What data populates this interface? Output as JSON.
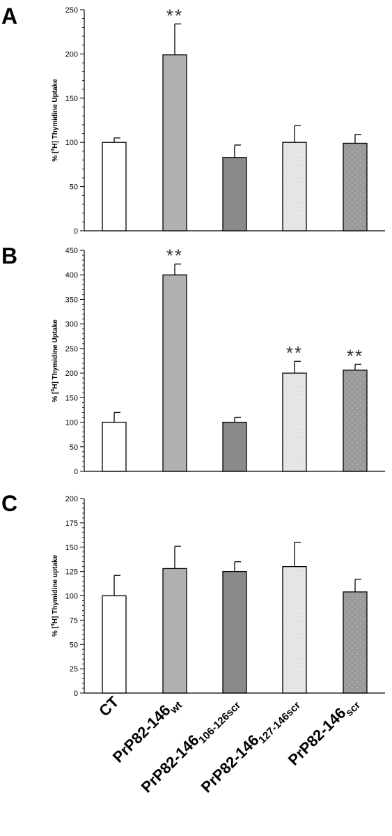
{
  "patterns": {
    "CT": {
      "fill": "#ffffff",
      "dots": null
    },
    "wt": {
      "fill": "#b0b0b0",
      "dots": null
    },
    "s106": {
      "fill": "#8a8a8a",
      "dots": null
    },
    "s127": {
      "fill": "#e6e6e6",
      "dots": "#d2d2d2"
    },
    "scr": {
      "fill": "#9a9a9a",
      "dots": "#b8b8b8"
    }
  },
  "x_labels": [
    {
      "main": "CT",
      "sub": ""
    },
    {
      "main": "PrP82-146",
      "sub": "wt"
    },
    {
      "main": "PrP82-146",
      "sub": "106-126scr"
    },
    {
      "main": "PrP82-146",
      "sub": "127-146scr"
    },
    {
      "main": "PrP82-146",
      "sub": "scr"
    }
  ],
  "significance_mark": "**",
  "chart_data": [
    {
      "type": "bar",
      "panel_letter": "A",
      "ylabel": {
        "prefix": "% [",
        "sup": "3",
        "suffix": "H] Thymidine Uptake"
      },
      "ylim": [
        0,
        250
      ],
      "yticks": [
        0,
        50,
        100,
        150,
        200,
        250
      ],
      "minor_step": 10,
      "categories": [
        "CT",
        "PrP82-146wt",
        "PrP82-146106-126scr",
        "PrP82-146127-146scr",
        "PrP82-146scr"
      ],
      "values": [
        100,
        199,
        83,
        100,
        99
      ],
      "errors": [
        5,
        35,
        14,
        19,
        10
      ],
      "significant": [
        false,
        true,
        false,
        false,
        false
      ]
    },
    {
      "type": "bar",
      "panel_letter": "B",
      "ylabel": {
        "prefix": "% [",
        "sup": "3",
        "suffix": "H] Thymidine Uptake"
      },
      "ylim": [
        0,
        450
      ],
      "yticks": [
        0,
        50,
        100,
        150,
        200,
        250,
        300,
        350,
        400,
        450
      ],
      "minor_step": 10,
      "categories": [
        "CT",
        "PrP82-146wt",
        "PrP82-146106-126scr",
        "PrP82-146127-146scr",
        "PrP82-146scr"
      ],
      "values": [
        100,
        400,
        100,
        200,
        206
      ],
      "errors": [
        20,
        22,
        10,
        24,
        12
      ],
      "significant": [
        false,
        true,
        false,
        true,
        true
      ]
    },
    {
      "type": "bar",
      "panel_letter": "C",
      "ylabel": {
        "prefix": "% [",
        "sup": "3",
        "suffix": "H] Thymidine uptake"
      },
      "ylim": [
        0,
        200
      ],
      "yticks": [
        0,
        25,
        50,
        75,
        100,
        125,
        150,
        175,
        200
      ],
      "minor_step": 5,
      "categories": [
        "CT",
        "PrP82-146wt",
        "PrP82-146106-126scr",
        "PrP82-146127-146scr",
        "PrP82-146scr"
      ],
      "values": [
        100,
        128,
        125,
        130,
        104
      ],
      "errors": [
        21,
        23,
        10,
        25,
        13
      ],
      "significant": [
        false,
        false,
        false,
        false,
        false
      ]
    }
  ]
}
